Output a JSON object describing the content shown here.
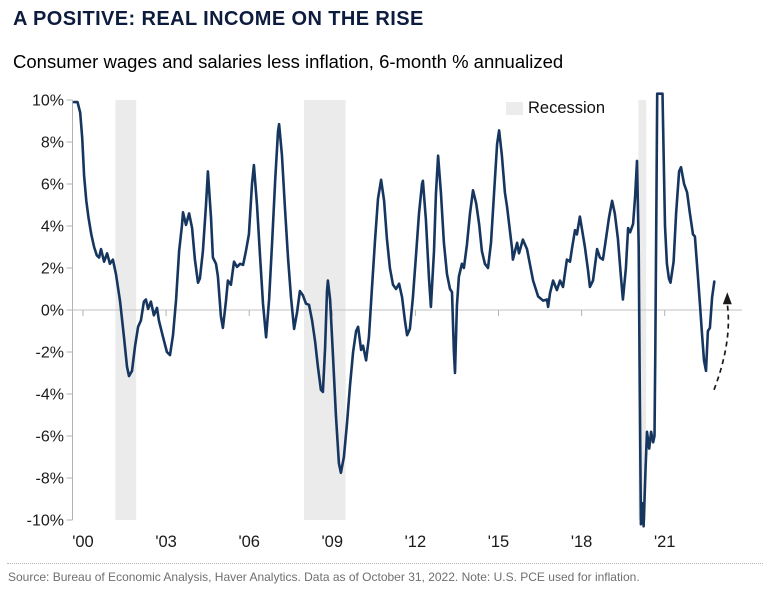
{
  "header": {
    "title": "A POSITIVE: REAL INCOME ON THE RISE",
    "subtitle": "Consumer wages and salaries less inflation, 6-month % annualized"
  },
  "footer": {
    "source": "Source: Bureau of Economic Analysis, Haver Analytics. Data as of October 31, 2022. Note: U.S. PCE used for inflation."
  },
  "chart_data": {
    "type": "line",
    "title": "A POSITIVE: REAL INCOME ON THE RISE",
    "subtitle": "Consumer wages and salaries less inflation, 6-month % annualized",
    "xlabel": "",
    "ylabel": "",
    "ylim": [
      -10,
      10
    ],
    "xlim": [
      1999.6,
      2023.8
    ],
    "grid": "zero-line-only",
    "legend": {
      "label": "Recession",
      "position": "top-right",
      "swatch_color": "#ececec"
    },
    "colors": {
      "line": "#16365f",
      "recession_band": "#ebebeb",
      "zero_line": "#c2c2c2",
      "axis": "#b3b3b3",
      "tick_text": "#1a1a1a",
      "title_text": "#0d1c3d",
      "source_text": "#6f6f6f",
      "arrow": "#1a1a1a"
    },
    "yticks": [
      {
        "value": 10,
        "label": "10%"
      },
      {
        "value": 8,
        "label": "8%"
      },
      {
        "value": 6,
        "label": "6%"
      },
      {
        "value": 4,
        "label": "4%"
      },
      {
        "value": 2,
        "label": "2%"
      },
      {
        "value": 0,
        "label": "0%"
      },
      {
        "value": -2,
        "label": "-2%"
      },
      {
        "value": -4,
        "label": "-4%"
      },
      {
        "value": -6,
        "label": "-6%"
      },
      {
        "value": -8,
        "label": "-8%"
      },
      {
        "value": -10,
        "label": "-10%"
      }
    ],
    "xticks": [
      {
        "year": 2000,
        "label": "'00"
      },
      {
        "year": 2003,
        "label": "'03"
      },
      {
        "year": 2006,
        "label": "'06"
      },
      {
        "year": 2009,
        "label": "'09"
      },
      {
        "year": 2012,
        "label": "'12"
      },
      {
        "year": 2015,
        "label": "'15"
      },
      {
        "year": 2018,
        "label": "'18"
      },
      {
        "year": 2021,
        "label": "'21"
      }
    ],
    "recessions": [
      [
        2001.17,
        2001.92
      ],
      [
        2007.98,
        2009.48
      ],
      [
        2020.05,
        2020.33
      ]
    ],
    "annotation_arrow": {
      "from_year": 2022.78,
      "from_value": -3.8,
      "to_year": 2023.26,
      "to_value": 0.8
    },
    "series": [
      {
        "name": "Consumer wages and salaries less inflation, 6-month % annualized",
        "points": [
          [
            1999.68,
            9.9
          ],
          [
            1999.8,
            9.9
          ],
          [
            1999.9,
            9.4
          ],
          [
            1999.97,
            8.2
          ],
          [
            2000.04,
            6.4
          ],
          [
            2000.12,
            5.2
          ],
          [
            2000.2,
            4.4
          ],
          [
            2000.3,
            3.6
          ],
          [
            2000.4,
            3.0
          ],
          [
            2000.5,
            2.6
          ],
          [
            2000.58,
            2.5
          ],
          [
            2000.65,
            2.9
          ],
          [
            2000.76,
            2.3
          ],
          [
            2000.87,
            2.7
          ],
          [
            2000.97,
            2.2
          ],
          [
            2001.08,
            2.4
          ],
          [
            2001.19,
            1.7
          ],
          [
            2001.34,
            0.4
          ],
          [
            2001.48,
            -1.3
          ],
          [
            2001.59,
            -2.7
          ],
          [
            2001.66,
            -3.15
          ],
          [
            2001.77,
            -2.9
          ],
          [
            2001.88,
            -1.7
          ],
          [
            2001.99,
            -0.8
          ],
          [
            2002.09,
            -0.5
          ],
          [
            2002.2,
            0.4
          ],
          [
            2002.27,
            0.5
          ],
          [
            2002.35,
            0.05
          ],
          [
            2002.45,
            0.4
          ],
          [
            2002.56,
            -0.25
          ],
          [
            2002.67,
            0.1
          ],
          [
            2002.74,
            -0.5
          ],
          [
            2002.89,
            -1.3
          ],
          [
            2003.03,
            -2.0
          ],
          [
            2003.14,
            -2.15
          ],
          [
            2003.25,
            -1.2
          ],
          [
            2003.36,
            0.5
          ],
          [
            2003.47,
            2.8
          ],
          [
            2003.57,
            4.0
          ],
          [
            2003.61,
            4.65
          ],
          [
            2003.72,
            4.05
          ],
          [
            2003.83,
            4.6
          ],
          [
            2003.94,
            3.9
          ],
          [
            2004.04,
            2.4
          ],
          [
            2004.15,
            1.3
          ],
          [
            2004.22,
            1.5
          ],
          [
            2004.33,
            2.8
          ],
          [
            2004.44,
            5.0
          ],
          [
            2004.51,
            6.6
          ],
          [
            2004.62,
            4.4
          ],
          [
            2004.69,
            2.5
          ],
          [
            2004.8,
            2.2
          ],
          [
            2004.87,
            1.6
          ],
          [
            2004.98,
            -0.3
          ],
          [
            2005.05,
            -0.85
          ],
          [
            2005.16,
            0.4
          ],
          [
            2005.23,
            1.4
          ],
          [
            2005.34,
            1.2
          ],
          [
            2005.45,
            2.3
          ],
          [
            2005.56,
            2.05
          ],
          [
            2005.67,
            2.2
          ],
          [
            2005.78,
            2.15
          ],
          [
            2005.88,
            2.8
          ],
          [
            2005.99,
            3.6
          ],
          [
            2006.1,
            6.0
          ],
          [
            2006.17,
            6.9
          ],
          [
            2006.28,
            5.0
          ],
          [
            2006.39,
            2.6
          ],
          [
            2006.5,
            0.3
          ],
          [
            2006.61,
            -1.3
          ],
          [
            2006.72,
            0.5
          ],
          [
            2006.83,
            3.3
          ],
          [
            2006.94,
            6.2
          ],
          [
            2007.04,
            8.5
          ],
          [
            2007.08,
            8.85
          ],
          [
            2007.18,
            7.4
          ],
          [
            2007.29,
            4.9
          ],
          [
            2007.4,
            2.5
          ],
          [
            2007.51,
            0.6
          ],
          [
            2007.62,
            -0.9
          ],
          [
            2007.73,
            -0.1
          ],
          [
            2007.83,
            0.9
          ],
          [
            2007.94,
            0.7
          ],
          [
            2008.05,
            0.3
          ],
          [
            2008.16,
            0.25
          ],
          [
            2008.27,
            -0.5
          ],
          [
            2008.38,
            -1.5
          ],
          [
            2008.48,
            -2.7
          ],
          [
            2008.59,
            -3.8
          ],
          [
            2008.66,
            -3.9
          ],
          [
            2008.74,
            -1.8
          ],
          [
            2008.81,
            0.9
          ],
          [
            2008.84,
            1.4
          ],
          [
            2008.92,
            0.5
          ],
          [
            2009.03,
            -2.3
          ],
          [
            2009.13,
            -5.0
          ],
          [
            2009.24,
            -7.3
          ],
          [
            2009.31,
            -7.75
          ],
          [
            2009.42,
            -7.0
          ],
          [
            2009.53,
            -5.4
          ],
          [
            2009.64,
            -3.6
          ],
          [
            2009.75,
            -2.0
          ],
          [
            2009.86,
            -1.0
          ],
          [
            2009.93,
            -0.8
          ],
          [
            2010.04,
            -1.9
          ],
          [
            2010.11,
            -1.7
          ],
          [
            2010.22,
            -2.4
          ],
          [
            2010.32,
            -1.3
          ],
          [
            2010.43,
            1.0
          ],
          [
            2010.54,
            3.3
          ],
          [
            2010.65,
            5.3
          ],
          [
            2010.76,
            6.2
          ],
          [
            2010.87,
            5.2
          ],
          [
            2010.97,
            3.4
          ],
          [
            2011.08,
            2.0
          ],
          [
            2011.19,
            1.2
          ],
          [
            2011.3,
            1.0
          ],
          [
            2011.41,
            1.25
          ],
          [
            2011.52,
            0.6
          ],
          [
            2011.62,
            -0.5
          ],
          [
            2011.7,
            -1.2
          ],
          [
            2011.8,
            -0.9
          ],
          [
            2011.91,
            0.6
          ],
          [
            2012.02,
            2.6
          ],
          [
            2012.13,
            4.6
          ],
          [
            2012.24,
            6.0
          ],
          [
            2012.27,
            6.15
          ],
          [
            2012.38,
            4.3
          ],
          [
            2012.49,
            1.5
          ],
          [
            2012.56,
            0.15
          ],
          [
            2012.67,
            2.8
          ],
          [
            2012.74,
            5.5
          ],
          [
            2012.82,
            7.35
          ],
          [
            2012.92,
            5.6
          ],
          [
            2013.03,
            3.2
          ],
          [
            2013.14,
            1.7
          ],
          [
            2013.25,
            1.0
          ],
          [
            2013.32,
            0.85
          ],
          [
            2013.39,
            -2.0
          ],
          [
            2013.43,
            -3.0
          ],
          [
            2013.5,
            0.2
          ],
          [
            2013.57,
            1.6
          ],
          [
            2013.68,
            2.2
          ],
          [
            2013.75,
            2.0
          ],
          [
            2013.86,
            3.1
          ],
          [
            2013.97,
            4.6
          ],
          [
            2014.08,
            5.7
          ],
          [
            2014.19,
            5.1
          ],
          [
            2014.3,
            4.1
          ],
          [
            2014.4,
            2.8
          ],
          [
            2014.51,
            2.2
          ],
          [
            2014.62,
            2.0
          ],
          [
            2014.73,
            3.2
          ],
          [
            2014.84,
            5.6
          ],
          [
            2014.95,
            7.9
          ],
          [
            2015.02,
            8.55
          ],
          [
            2015.12,
            7.4
          ],
          [
            2015.23,
            5.6
          ],
          [
            2015.31,
            4.9
          ],
          [
            2015.49,
            2.9
          ],
          [
            2015.52,
            2.4
          ],
          [
            2015.67,
            3.2
          ],
          [
            2015.74,
            2.7
          ],
          [
            2015.88,
            3.35
          ],
          [
            2016.03,
            2.9
          ],
          [
            2016.25,
            1.4
          ],
          [
            2016.43,
            0.65
          ],
          [
            2016.61,
            0.45
          ],
          [
            2016.75,
            0.5
          ],
          [
            2016.79,
            0.15
          ],
          [
            2016.86,
            0.8
          ],
          [
            2016.97,
            1.4
          ],
          [
            2017.11,
            0.95
          ],
          [
            2017.22,
            1.4
          ],
          [
            2017.33,
            1.1
          ],
          [
            2017.47,
            2.4
          ],
          [
            2017.58,
            2.3
          ],
          [
            2017.65,
            2.9
          ],
          [
            2017.76,
            3.8
          ],
          [
            2017.83,
            3.6
          ],
          [
            2017.94,
            4.45
          ],
          [
            2018.12,
            3.0
          ],
          [
            2018.23,
            1.9
          ],
          [
            2018.3,
            1.1
          ],
          [
            2018.41,
            1.4
          ],
          [
            2018.49,
            2.2
          ],
          [
            2018.56,
            2.9
          ],
          [
            2018.66,
            2.5
          ],
          [
            2018.77,
            2.4
          ],
          [
            2018.88,
            3.4
          ],
          [
            2018.99,
            4.4
          ],
          [
            2019.1,
            5.2
          ],
          [
            2019.2,
            4.6
          ],
          [
            2019.31,
            3.4
          ],
          [
            2019.42,
            1.6
          ],
          [
            2019.49,
            0.5
          ],
          [
            2019.6,
            2.0
          ],
          [
            2019.68,
            3.9
          ],
          [
            2019.75,
            3.7
          ],
          [
            2019.86,
            4.1
          ],
          [
            2019.93,
            5.4
          ],
          [
            2020.0,
            7.1
          ],
          [
            2020.06,
            3.0
          ],
          [
            2020.1,
            -4.0
          ],
          [
            2020.14,
            -10.2
          ],
          [
            2020.19,
            -9.2
          ],
          [
            2020.24,
            -10.3
          ],
          [
            2020.31,
            -7.5
          ],
          [
            2020.36,
            -5.8
          ],
          [
            2020.44,
            -6.6
          ],
          [
            2020.51,
            -5.8
          ],
          [
            2020.58,
            -6.3
          ],
          [
            2020.63,
            -6.0
          ],
          [
            2020.66,
            -2.0
          ],
          [
            2020.7,
            5.0
          ],
          [
            2020.73,
            10.3
          ],
          [
            2020.92,
            10.3
          ],
          [
            2020.96,
            7.5
          ],
          [
            2021.01,
            4.0
          ],
          [
            2021.08,
            2.2
          ],
          [
            2021.15,
            1.5
          ],
          [
            2021.21,
            1.3
          ],
          [
            2021.32,
            2.3
          ],
          [
            2021.41,
            4.6
          ],
          [
            2021.52,
            6.6
          ],
          [
            2021.59,
            6.8
          ],
          [
            2021.7,
            6.0
          ],
          [
            2021.81,
            5.6
          ],
          [
            2021.91,
            4.6
          ],
          [
            2022.02,
            3.6
          ],
          [
            2022.09,
            3.5
          ],
          [
            2022.2,
            1.6
          ],
          [
            2022.27,
            0.3
          ],
          [
            2022.35,
            -1.2
          ],
          [
            2022.42,
            -2.4
          ],
          [
            2022.49,
            -2.9
          ],
          [
            2022.56,
            -1.0
          ],
          [
            2022.63,
            -0.85
          ],
          [
            2022.71,
            0.6
          ],
          [
            2022.79,
            1.35
          ]
        ]
      }
    ]
  }
}
